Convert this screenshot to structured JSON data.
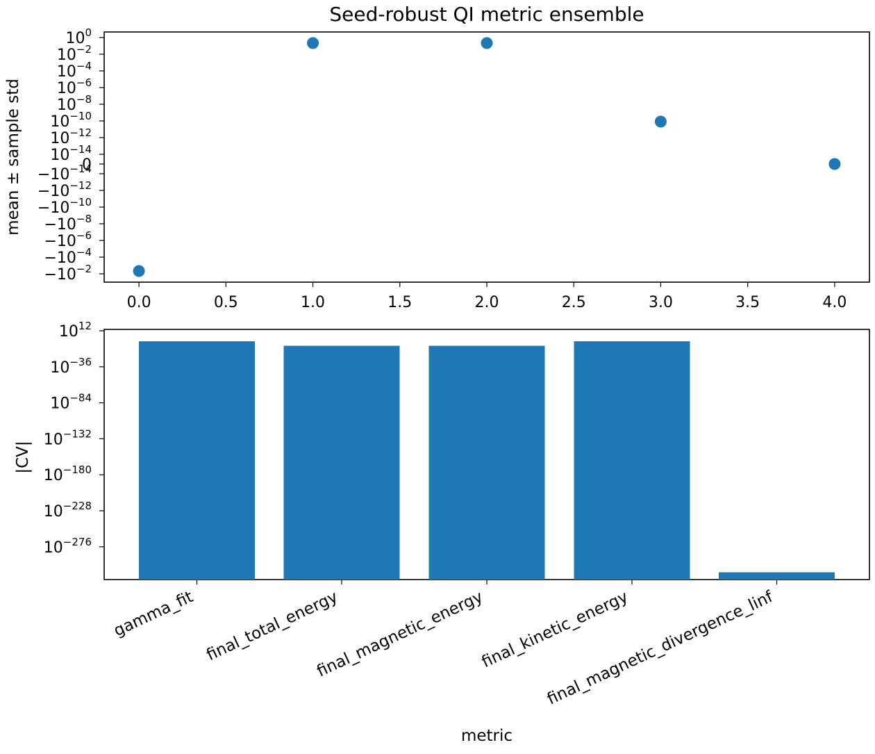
{
  "title": "Seed-robust QI metric ensemble",
  "colors": {
    "series": "#1f77b4",
    "axes": "#000000",
    "background": "#ffffff"
  },
  "chart_data": [
    {
      "type": "scatter",
      "title": "Seed-robust QI metric ensemble",
      "xlabel": "",
      "ylabel": "mean ± sample std",
      "yscale": "symlog",
      "xlim": [
        -0.2,
        4.2
      ],
      "xticks": [
        "0.0",
        "0.5",
        "1.0",
        "1.5",
        "2.0",
        "2.5",
        "3.0",
        "3.5",
        "4.0"
      ],
      "yticks": [
        {
          "sign": "",
          "exp": "0"
        },
        {
          "sign": "",
          "exp": "−2"
        },
        {
          "sign": "",
          "exp": "−4"
        },
        {
          "sign": "",
          "exp": "−6"
        },
        {
          "sign": "",
          "exp": "−8"
        },
        {
          "sign": "",
          "exp": "−10"
        },
        {
          "sign": "",
          "exp": "−12"
        },
        {
          "sign": "",
          "exp": "−14"
        },
        {
          "sign": "zero",
          "exp": ""
        },
        {
          "sign": "−",
          "exp": "−14"
        },
        {
          "sign": "−",
          "exp": "−12"
        },
        {
          "sign": "−",
          "exp": "−10"
        },
        {
          "sign": "−",
          "exp": "−8"
        },
        {
          "sign": "−",
          "exp": "−6"
        },
        {
          "sign": "−",
          "exp": "−4"
        },
        {
          "sign": "−",
          "exp": "−2"
        }
      ],
      "x": [
        0,
        1,
        2,
        3,
        4
      ],
      "y": [
        -0.015,
        0.5,
        0.5,
        1e-10,
        0
      ],
      "grid": false,
      "legend": "none"
    },
    {
      "type": "bar",
      "xlabel": "metric",
      "ylabel": "|CV|",
      "yscale": "log",
      "categories": [
        "gamma_fit",
        "final_total_energy",
        "final_magnetic_energy",
        "final_kinetic_energy",
        "final_magnetic_divergence_linf"
      ],
      "values_log10": [
        -2,
        -8,
        -8,
        -2,
        -310
      ],
      "yticks": [
        "12",
        "−36",
        "−84",
        "−132",
        "−180",
        "−228",
        "−276"
      ],
      "grid": false,
      "legend": "none"
    }
  ]
}
